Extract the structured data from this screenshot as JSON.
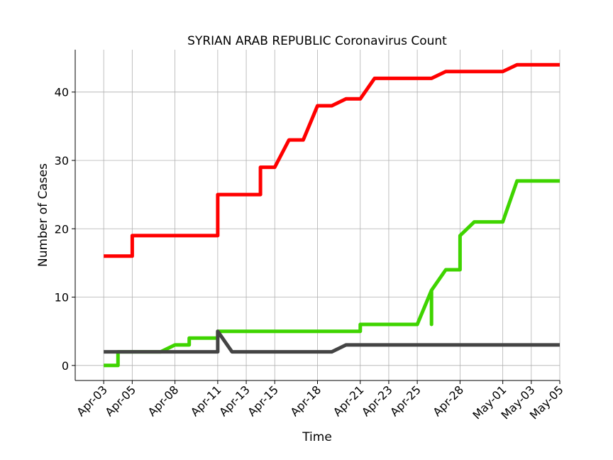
{
  "chart_data": {
    "type": "line",
    "title": "SYRIAN ARAB REPUBLIC Coronavirus Count",
    "xlabel": "Time",
    "ylabel": "Number of Cases",
    "grid": true,
    "ylim": [
      -2.2,
      46.2
    ],
    "xlim": [
      "2020-04-01",
      "2020-05-05"
    ],
    "yticks": [
      0,
      10,
      20,
      30,
      40
    ],
    "xticks": [
      {
        "date": "2020-04-03",
        "label": "Apr-03"
      },
      {
        "date": "2020-04-05",
        "label": "Apr-05"
      },
      {
        "date": "2020-04-08",
        "label": "Apr-08"
      },
      {
        "date": "2020-04-11",
        "label": "Apr-11"
      },
      {
        "date": "2020-04-13",
        "label": "Apr-13"
      },
      {
        "date": "2020-04-15",
        "label": "Apr-15"
      },
      {
        "date": "2020-04-18",
        "label": "Apr-18"
      },
      {
        "date": "2020-04-21",
        "label": "Apr-21"
      },
      {
        "date": "2020-04-23",
        "label": "Apr-23"
      },
      {
        "date": "2020-04-25",
        "label": "Apr-25"
      },
      {
        "date": "2020-04-28",
        "label": "Apr-28"
      },
      {
        "date": "2020-05-01",
        "label": "May-01"
      },
      {
        "date": "2020-05-03",
        "label": "May-03"
      },
      {
        "date": "2020-05-05",
        "label": "May-05"
      }
    ],
    "series": [
      {
        "color": "#ff0000",
        "points": [
          [
            "2020-04-03",
            16
          ],
          [
            "2020-04-05",
            16
          ],
          [
            "2020-04-05",
            19
          ],
          [
            "2020-04-11",
            19
          ],
          [
            "2020-04-11",
            25
          ],
          [
            "2020-04-14",
            25
          ],
          [
            "2020-04-14",
            29
          ],
          [
            "2020-04-15",
            29
          ],
          [
            "2020-04-16",
            33
          ],
          [
            "2020-04-17",
            33
          ],
          [
            "2020-04-18",
            38
          ],
          [
            "2020-04-19",
            38
          ],
          [
            "2020-04-20",
            39
          ],
          [
            "2020-04-21",
            39
          ],
          [
            "2020-04-22",
            42
          ],
          [
            "2020-04-26",
            42
          ],
          [
            "2020-04-27",
            43
          ],
          [
            "2020-05-01",
            43
          ],
          [
            "2020-05-02",
            44
          ],
          [
            "2020-05-05",
            44
          ]
        ]
      },
      {
        "color": "#3fd400",
        "points": [
          [
            "2020-04-03",
            0
          ],
          [
            "2020-04-04",
            0
          ],
          [
            "2020-04-04",
            2
          ],
          [
            "2020-04-07",
            2
          ],
          [
            "2020-04-08",
            3
          ],
          [
            "2020-04-09",
            3
          ],
          [
            "2020-04-09",
            4
          ],
          [
            "2020-04-11",
            4
          ],
          [
            "2020-04-11",
            5
          ],
          [
            "2020-04-21",
            5
          ],
          [
            "2020-04-21",
            6
          ],
          [
            "2020-04-25",
            6
          ],
          [
            "2020-04-26",
            11
          ],
          [
            "2020-04-26",
            6
          ],
          [
            "2020-04-26",
            11
          ],
          [
            "2020-04-27",
            14
          ],
          [
            "2020-04-28",
            14
          ],
          [
            "2020-04-28",
            19
          ],
          [
            "2020-04-29",
            21
          ],
          [
            "2020-05-01",
            21
          ],
          [
            "2020-05-02",
            27
          ],
          [
            "2020-05-05",
            27
          ]
        ]
      },
      {
        "color": "#444444",
        "points": [
          [
            "2020-04-03",
            2
          ],
          [
            "2020-04-11",
            2
          ],
          [
            "2020-04-11",
            5
          ],
          [
            "2020-04-12",
            2
          ],
          [
            "2020-04-19",
            2
          ],
          [
            "2020-04-20",
            3
          ],
          [
            "2020-05-05",
            3
          ]
        ]
      }
    ]
  }
}
